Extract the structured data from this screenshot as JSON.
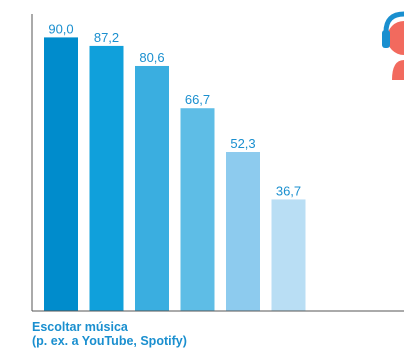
{
  "chart_data": {
    "type": "bar",
    "category_label": [
      "Escoltar música",
      "(p. ex. a YouTube, Spotify)"
    ],
    "values": [
      90.0,
      87.2,
      80.6,
      66.7,
      52.3,
      36.7
    ],
    "value_labels": [
      "90,0",
      "87,2",
      "80,6",
      "66,7",
      "52,3",
      "36,7"
    ],
    "bar_colors": [
      "#008ccc",
      "#10a0db",
      "#3aaee0",
      "#5ebde6",
      "#8dcbee",
      "#b9def4"
    ],
    "ylim": [
      0,
      100
    ],
    "legend": "none",
    "grid": false
  },
  "colors": {
    "value_text": "#1a8fcf",
    "category_text": "#1a8fcf",
    "axis": "#555555",
    "icon_skin": "#f26a5e",
    "icon_headphones": "#1a8fcf"
  },
  "icon": "headphones-person-icon"
}
